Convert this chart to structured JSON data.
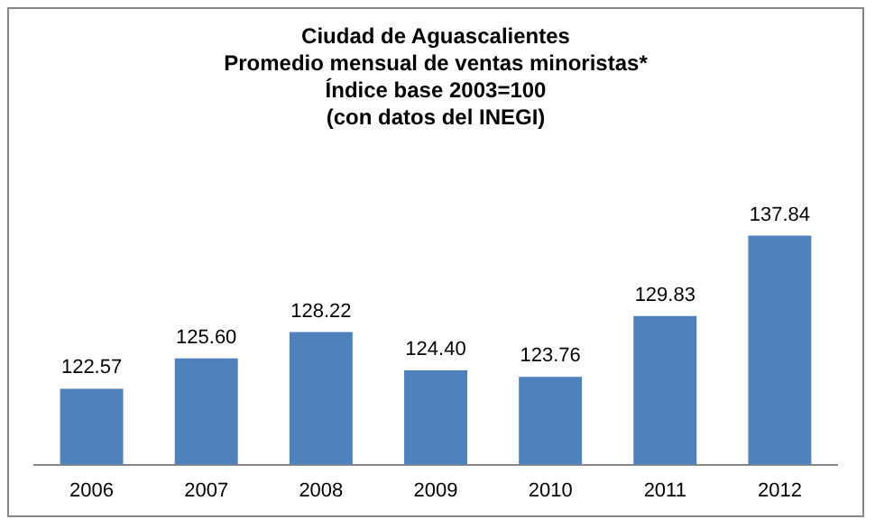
{
  "chart_data": {
    "type": "bar",
    "title": [
      "Ciudad de Aguascalientes",
      "Promedio mensual de ventas minoristas*",
      "Índice base 2003=100",
      "(con datos del INEGI)"
    ],
    "categories": [
      "2006",
      "2007",
      "2008",
      "2009",
      "2010",
      "2011",
      "2012"
    ],
    "values": [
      122.57,
      125.6,
      128.22,
      124.4,
      123.76,
      129.83,
      137.84
    ],
    "value_labels": [
      "122.57",
      "125.60",
      "128.22",
      "124.40",
      "123.76",
      "129.83",
      "137.84"
    ],
    "color": "#4f81bd",
    "tick_labels": "x",
    "grid": false,
    "legend": false
  }
}
